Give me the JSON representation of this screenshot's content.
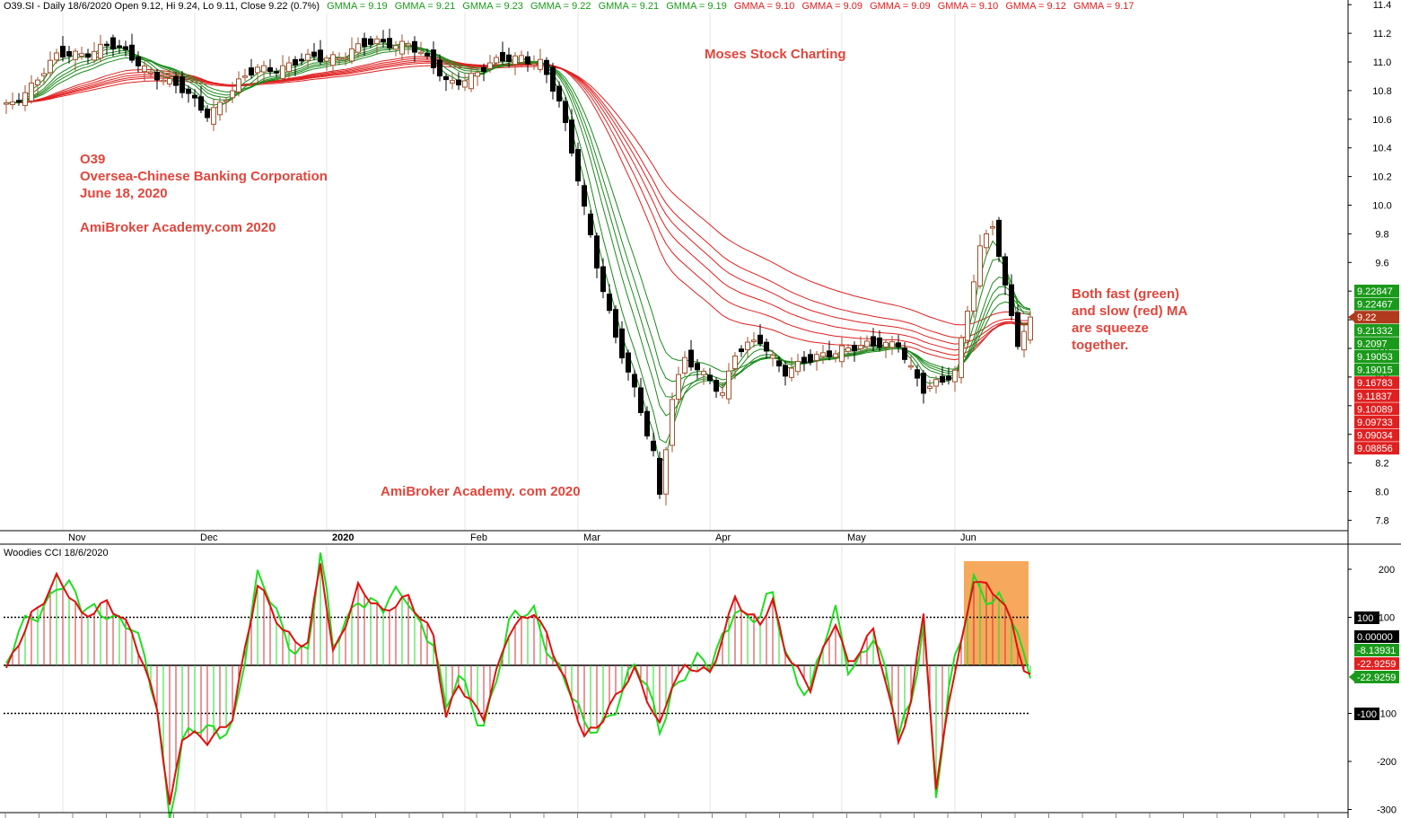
{
  "header": {
    "title": "O39.SI - Daily 18/6/2020 Open 9.12, Hi 9.24, Lo 9.11, Close 9.22 (0.7%)",
    "gmma": [
      {
        "label": "GMMA = 9.19",
        "color": "#1a9a1a"
      },
      {
        "label": "GMMA = 9.21",
        "color": "#1a9a1a"
      },
      {
        "label": "GMMA = 9.23",
        "color": "#1a9a1a"
      },
      {
        "label": "GMMA = 9.22",
        "color": "#1a9a1a"
      },
      {
        "label": "GMMA = 9.21",
        "color": "#1a9a1a"
      },
      {
        "label": "GMMA = 9.19",
        "color": "#1a9a1a"
      },
      {
        "label": "GMMA = 9.10",
        "color": "#e02020"
      },
      {
        "label": "GMMA = 9.09",
        "color": "#e02020"
      },
      {
        "label": "GMMA = 9.09",
        "color": "#e02020"
      },
      {
        "label": "GMMA = 9.10",
        "color": "#e02020"
      },
      {
        "label": "GMMA = 9.12",
        "color": "#e02020"
      },
      {
        "label": "GMMA = 9.17",
        "color": "#e02020"
      }
    ]
  },
  "annotations": {
    "watermark_top": "Moses Stock Charting",
    "symbol": "O39",
    "company": "Oversea-Chinese Banking Corporation",
    "date": "June 18, 2020",
    "site": "AmiBroker Academy.com  2020",
    "site2": "AmiBroker Academy. com 2020",
    "note": [
      "Both fast (green)",
      "and slow (red) MA",
      "are squeeze",
      "together."
    ]
  },
  "colors": {
    "fast": "#1a8a1a",
    "slow": "#e02020",
    "up_candle": "#a0522d",
    "down_candle": "#000000",
    "cci_line": "#e01010",
    "cci_green": "#22dd22",
    "highlight": "#f5a04a"
  },
  "chart_data": [
    {
      "type": "candlestick",
      "title": "O39.SI - Daily",
      "xlabel": "",
      "ylabel": "",
      "ylim": [
        7.7,
        11.5
      ],
      "yticks": [
        "11.4",
        "11.2",
        "11.0",
        "10.8",
        "10.6",
        "10.4",
        "10.2",
        "10.0",
        "9.8",
        "9.6",
        "9.4",
        "9.2",
        "9.0",
        "8.8",
        "8.6",
        "8.4",
        "8.2",
        "8.0",
        "7.8"
      ],
      "x_labels": [
        {
          "label": "Nov",
          "i": 9
        },
        {
          "label": "Dec",
          "i": 30
        },
        {
          "label": "2020",
          "i": 51
        },
        {
          "label": "Feb",
          "i": 73
        },
        {
          "label": "Mar",
          "i": 91
        },
        {
          "label": "Apr",
          "i": 112
        },
        {
          "label": "May",
          "i": 133
        },
        {
          "label": "Jun",
          "i": 151
        }
      ],
      "key_closes": [
        {
          "i": 0,
          "c": 10.68
        },
        {
          "i": 8,
          "c": 11.02
        },
        {
          "i": 16,
          "c": 11.12
        },
        {
          "i": 24,
          "c": 10.92
        },
        {
          "i": 32,
          "c": 10.65
        },
        {
          "i": 40,
          "c": 10.95
        },
        {
          "i": 50,
          "c": 11.02
        },
        {
          "i": 56,
          "c": 11.1
        },
        {
          "i": 64,
          "c": 11.15
        },
        {
          "i": 70,
          "c": 10.85
        },
        {
          "i": 76,
          "c": 10.95
        },
        {
          "i": 82,
          "c": 11.05
        },
        {
          "i": 85,
          "c": 11.0
        },
        {
          "i": 88,
          "c": 10.7
        },
        {
          "i": 91,
          "c": 10.2
        },
        {
          "i": 94,
          "c": 9.6
        },
        {
          "i": 97,
          "c": 9.05
        },
        {
          "i": 100,
          "c": 8.7
        },
        {
          "i": 103,
          "c": 8.3
        },
        {
          "i": 104,
          "c": 7.98
        },
        {
          "i": 106,
          "c": 8.65
        },
        {
          "i": 108,
          "c": 8.9
        },
        {
          "i": 112,
          "c": 8.8
        },
        {
          "i": 114,
          "c": 8.7
        },
        {
          "i": 116,
          "c": 8.95
        },
        {
          "i": 120,
          "c": 9.05
        },
        {
          "i": 124,
          "c": 8.85
        },
        {
          "i": 128,
          "c": 8.9
        },
        {
          "i": 133,
          "c": 9.02
        },
        {
          "i": 138,
          "c": 9.0
        },
        {
          "i": 142,
          "c": 9.05
        },
        {
          "i": 146,
          "c": 8.7
        },
        {
          "i": 149,
          "c": 8.75
        },
        {
          "i": 151,
          "c": 8.85
        },
        {
          "i": 153,
          "c": 9.3
        },
        {
          "i": 155,
          "c": 9.7
        },
        {
          "i": 157,
          "c": 9.85
        },
        {
          "i": 159,
          "c": 9.4
        },
        {
          "i": 161,
          "c": 9.05
        },
        {
          "i": 163,
          "c": 9.22
        }
      ],
      "gmma_fast_values": [
        9.19,
        9.21,
        9.23,
        9.22,
        9.21,
        9.19
      ],
      "gmma_slow_values": [
        9.1,
        9.09,
        9.09,
        9.1,
        9.12,
        9.17
      ],
      "price_tags": [
        {
          "text": "9.22847",
          "color": "#1a9a1a"
        },
        {
          "text": "9.22467",
          "color": "#1a9a1a"
        },
        {
          "text": "9.22",
          "color": "#b23a1c"
        },
        {
          "text": "9.21332",
          "color": "#1a9a1a"
        },
        {
          "text": "9.2097",
          "color": "#1a9a1a"
        },
        {
          "text": "9.19053",
          "color": "#1a9a1a"
        },
        {
          "text": "9.19015",
          "color": "#1a9a1a"
        },
        {
          "text": "9.16783",
          "color": "#e02020"
        },
        {
          "text": "9.11837",
          "color": "#e02020"
        },
        {
          "text": "9.10089",
          "color": "#e02020"
        },
        {
          "text": "9.09733",
          "color": "#e02020"
        },
        {
          "text": "9.09034",
          "color": "#e02020"
        },
        {
          "text": "9.08856",
          "color": "#e02020"
        }
      ]
    },
    {
      "type": "line",
      "title": "Woodies CCI  18/6/2020",
      "ylim": [
        -300,
        215
      ],
      "yticks": [
        "200",
        "100",
        "-100",
        "-200",
        "-300"
      ],
      "levels": [
        100,
        0,
        -100
      ],
      "key_values": [
        {
          "i": 0,
          "v": -20
        },
        {
          "i": 4,
          "v": 110
        },
        {
          "i": 8,
          "v": 180
        },
        {
          "i": 12,
          "v": 100
        },
        {
          "i": 16,
          "v": 140
        },
        {
          "i": 20,
          "v": 60
        },
        {
          "i": 24,
          "v": -80
        },
        {
          "i": 26,
          "v": -290
        },
        {
          "i": 28,
          "v": -150
        },
        {
          "i": 32,
          "v": -160
        },
        {
          "i": 36,
          "v": -100
        },
        {
          "i": 40,
          "v": 160
        },
        {
          "i": 44,
          "v": 80
        },
        {
          "i": 48,
          "v": 40
        },
        {
          "i": 50,
          "v": 210
        },
        {
          "i": 52,
          "v": 20
        },
        {
          "i": 56,
          "v": 170
        },
        {
          "i": 60,
          "v": 100
        },
        {
          "i": 64,
          "v": 150
        },
        {
          "i": 68,
          "v": 60
        },
        {
          "i": 70,
          "v": -120
        },
        {
          "i": 72,
          "v": -40
        },
        {
          "i": 76,
          "v": -100
        },
        {
          "i": 80,
          "v": 60
        },
        {
          "i": 84,
          "v": 120
        },
        {
          "i": 86,
          "v": 70
        },
        {
          "i": 90,
          "v": -80
        },
        {
          "i": 92,
          "v": -150
        },
        {
          "i": 94,
          "v": -120
        },
        {
          "i": 96,
          "v": -80
        },
        {
          "i": 100,
          "v": -20
        },
        {
          "i": 104,
          "v": -120
        },
        {
          "i": 106,
          "v": -30
        },
        {
          "i": 108,
          "v": -10
        },
        {
          "i": 112,
          "v": -20
        },
        {
          "i": 116,
          "v": 150
        },
        {
          "i": 118,
          "v": 100
        },
        {
          "i": 120,
          "v": 80
        },
        {
          "i": 122,
          "v": 130
        },
        {
          "i": 124,
          "v": 40
        },
        {
          "i": 128,
          "v": -50
        },
        {
          "i": 132,
          "v": 90
        },
        {
          "i": 134,
          "v": 10
        },
        {
          "i": 138,
          "v": 70
        },
        {
          "i": 142,
          "v": -160
        },
        {
          "i": 144,
          "v": -70
        },
        {
          "i": 146,
          "v": 120
        },
        {
          "i": 148,
          "v": -270
        },
        {
          "i": 150,
          "v": -80
        },
        {
          "i": 152,
          "v": 40
        },
        {
          "i": 154,
          "v": 190
        },
        {
          "i": 156,
          "v": 170
        },
        {
          "i": 158,
          "v": 140
        },
        {
          "i": 160,
          "v": 80
        },
        {
          "i": 162,
          "v": -10
        },
        {
          "i": 163,
          "v": -23
        }
      ],
      "value_tags": [
        {
          "text": "100",
          "color": "#000000"
        },
        {
          "text": "0.00000",
          "color": "#000000"
        },
        {
          "text": "-8.13931",
          "color": "#1a9a1a"
        },
        {
          "text": "-22.9259",
          "color": "#e02020"
        },
        {
          "text": "-22.9259",
          "color": "#1a9a1a"
        },
        {
          "text": "-100",
          "color": "#000000"
        }
      ]
    }
  ]
}
